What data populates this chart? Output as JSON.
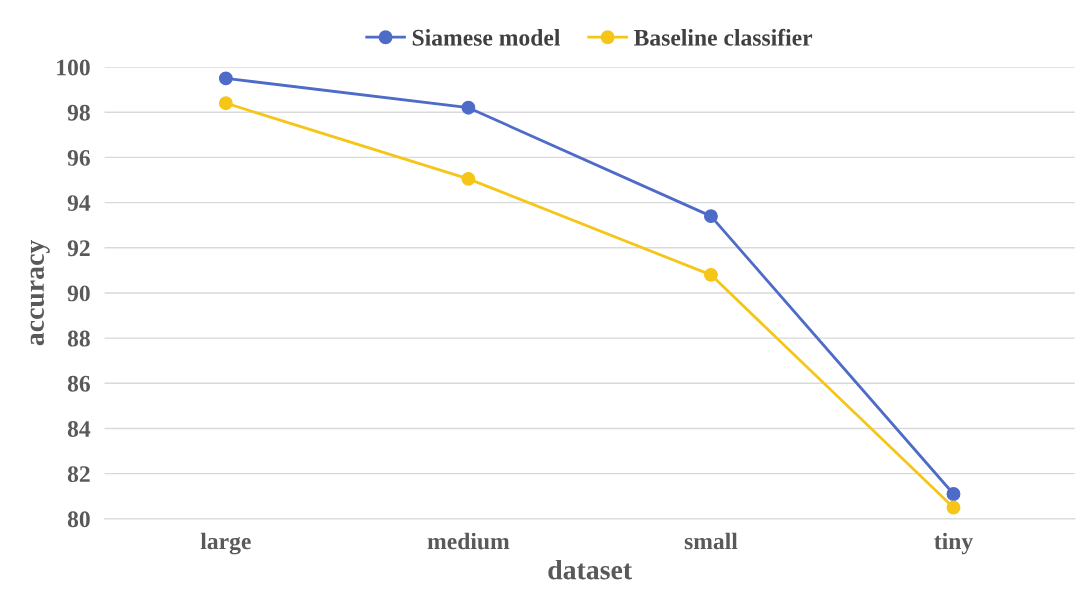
{
  "chart_data": {
    "type": "line",
    "xlabel": "dataset",
    "ylabel": "accuracy",
    "categories": [
      "large",
      "medium",
      "small",
      "tiny"
    ],
    "series": [
      {
        "name": "Siamese model",
        "color": "#4e6bc8",
        "values": [
          99.5,
          98.2,
          93.4,
          81.1
        ]
      },
      {
        "name": "Baseline classifier",
        "color": "#f5c518",
        "values": [
          98.4,
          95.05,
          90.8,
          80.5
        ]
      }
    ],
    "ylim": [
      80,
      100
    ],
    "yticks": [
      80,
      82,
      84,
      86,
      88,
      90,
      92,
      94,
      96,
      98,
      100
    ],
    "grid": "y",
    "legend": "top",
    "marker": "circle",
    "line_style": "solid"
  }
}
